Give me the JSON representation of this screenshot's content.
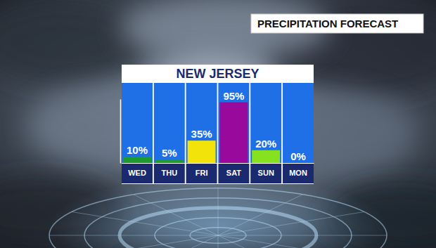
{
  "chart_data": {
    "type": "bar",
    "title": "PRECIPITATION FORECAST",
    "subtitle": "NEW JERSEY",
    "categories": [
      "WED",
      "THU",
      "FRI",
      "SAT",
      "SUN",
      "MON"
    ],
    "values": [
      10,
      5,
      35,
      95,
      20,
      0
    ],
    "value_labels": [
      "10%",
      "5%",
      "35%",
      "95%",
      "20%",
      "0%"
    ],
    "colors": [
      "#1f9a2e",
      "#1f9a2e",
      "#f2e40a",
      "#990a9c",
      "#86e21e",
      "#ffffff"
    ],
    "ylim": [
      0,
      100
    ],
    "yticks": [],
    "data_labels": true,
    "tick_labels": "x"
  }
}
